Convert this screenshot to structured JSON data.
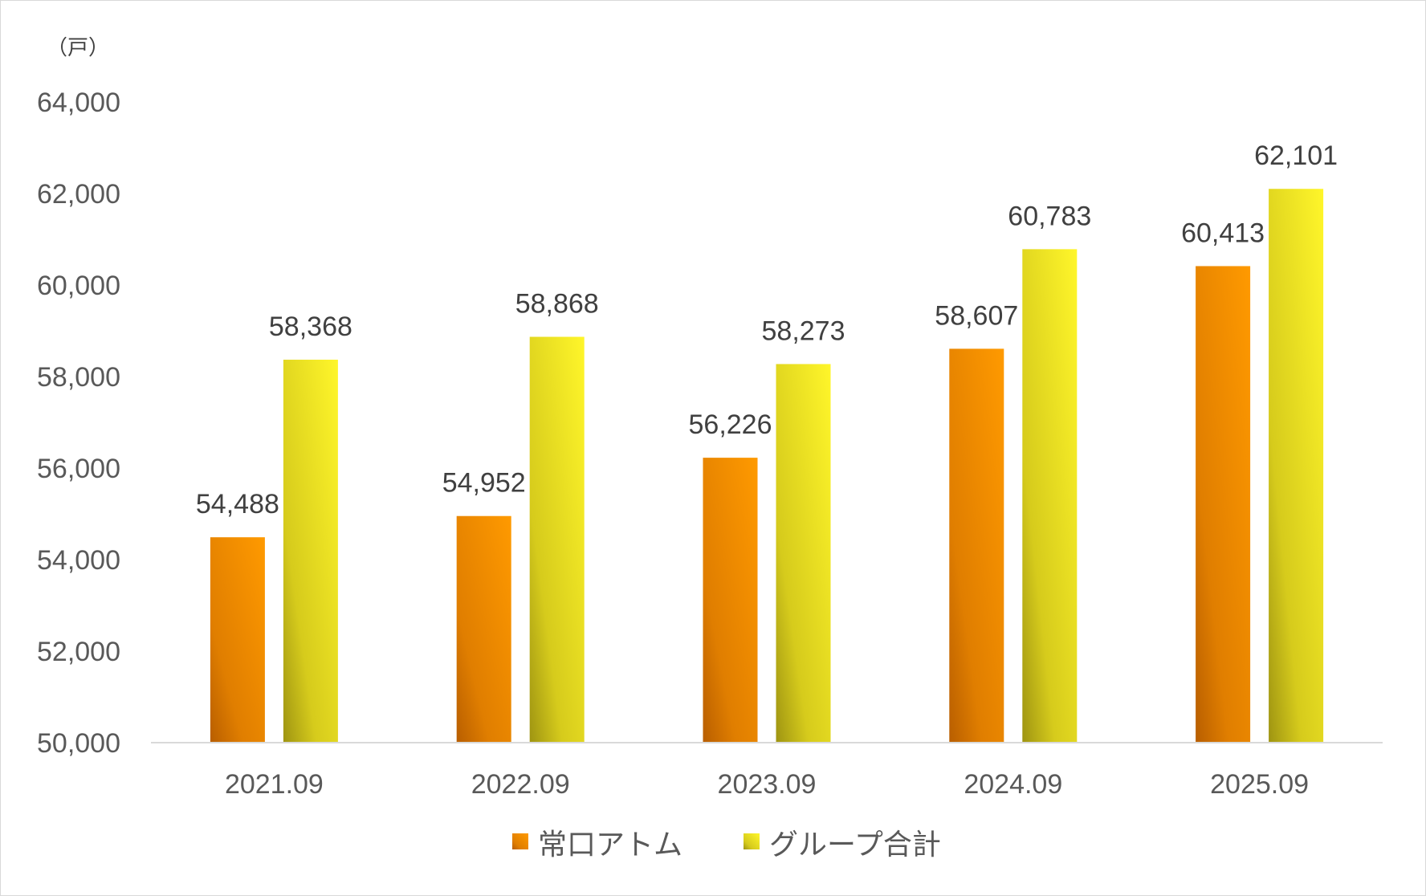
{
  "chart_data": {
    "type": "bar",
    "unit_label": "（戸）",
    "categories": [
      "2021.09",
      "2022.09",
      "2023.09",
      "2024.09",
      "2025.09"
    ],
    "series": [
      {
        "name": "常口アトム",
        "values": [
          54488,
          54952,
          56226,
          58607,
          60413
        ],
        "color": "#F59200"
      },
      {
        "name": "グループ合計",
        "values": [
          58368,
          58868,
          58273,
          60783,
          62101
        ],
        "color": "#F2EA1B"
      }
    ],
    "data_labels": [
      [
        "54,488",
        "54,952",
        "56,226",
        "58,607",
        "60,413"
      ],
      [
        "58,368",
        "58,868",
        "58,273",
        "60,783",
        "62,101"
      ]
    ],
    "y_ticks": [
      "50,000",
      "52,000",
      "54,000",
      "56,000",
      "58,000",
      "60,000",
      "62,000",
      "64,000"
    ],
    "ylim": [
      50000,
      64000
    ],
    "grid": false,
    "legend": "bottom"
  }
}
